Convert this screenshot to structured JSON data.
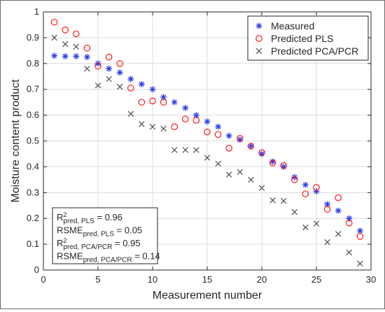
{
  "chart_data": {
    "type": "scatter",
    "title": "",
    "xlabel": "Measurement number",
    "ylabel": "Moisture content product",
    "xlim": [
      0,
      30
    ],
    "ylim": [
      0,
      1
    ],
    "xticks": [
      0,
      5,
      10,
      15,
      20,
      25,
      30
    ],
    "yticks": [
      0,
      0.1,
      0.2,
      0.3,
      0.4,
      0.5,
      0.6,
      0.7,
      0.8,
      0.9,
      1
    ],
    "grid": true,
    "legend_position": "top-right",
    "x": [
      1,
      2,
      3,
      4,
      5,
      6,
      7,
      8,
      9,
      10,
      11,
      12,
      13,
      14,
      15,
      16,
      17,
      18,
      19,
      20,
      21,
      22,
      23,
      24,
      25,
      26,
      27,
      28,
      29
    ],
    "series": [
      {
        "name": "Measured",
        "marker": "asterisk",
        "color": "#2b3df0",
        "values": [
          0.83,
          0.828,
          0.828,
          0.825,
          0.8,
          0.78,
          0.765,
          0.74,
          0.72,
          0.7,
          0.67,
          0.65,
          0.628,
          0.6,
          0.575,
          0.555,
          0.52,
          0.505,
          0.48,
          0.45,
          0.42,
          0.4,
          0.36,
          0.33,
          0.305,
          0.255,
          0.23,
          0.2,
          0.152
        ]
      },
      {
        "name": "Predicted PLS",
        "marker": "circle",
        "color": "#ff1a1a",
        "values": [
          0.96,
          0.93,
          0.915,
          0.86,
          0.79,
          0.825,
          0.8,
          0.705,
          0.65,
          0.655,
          0.65,
          0.555,
          0.585,
          0.58,
          0.535,
          0.525,
          0.472,
          0.51,
          0.48,
          0.455,
          0.415,
          0.405,
          0.35,
          0.295,
          0.32,
          0.235,
          0.28,
          0.182,
          0.13
        ]
      },
      {
        "name": "Predicted PCA/PCR",
        "marker": "x",
        "color": "#4d4d4d",
        "values": [
          0.9,
          0.875,
          0.865,
          0.78,
          0.715,
          0.74,
          0.71,
          0.605,
          0.565,
          0.555,
          0.548,
          0.465,
          0.465,
          0.465,
          0.435,
          0.412,
          0.37,
          0.38,
          0.35,
          0.318,
          0.27,
          0.268,
          0.225,
          0.165,
          0.18,
          0.108,
          0.14,
          0.068,
          0.025
        ]
      }
    ],
    "annotation": {
      "lines": [
        {
          "base": "R",
          "sup": "2",
          "sub": "pred, PLS",
          "tail": " = 0.96"
        },
        {
          "base": "RSME",
          "sup": "",
          "sub": "pred, PLS",
          "tail": " = 0.05"
        },
        {
          "base": "R",
          "sup": "2",
          "sub": "pred, PCA/PCR",
          "tail": " = 0.95"
        },
        {
          "base": "RSME",
          "sup": "",
          "sub": "pred, PCA/PCR",
          "tail": " = 0.14"
        }
      ]
    }
  }
}
